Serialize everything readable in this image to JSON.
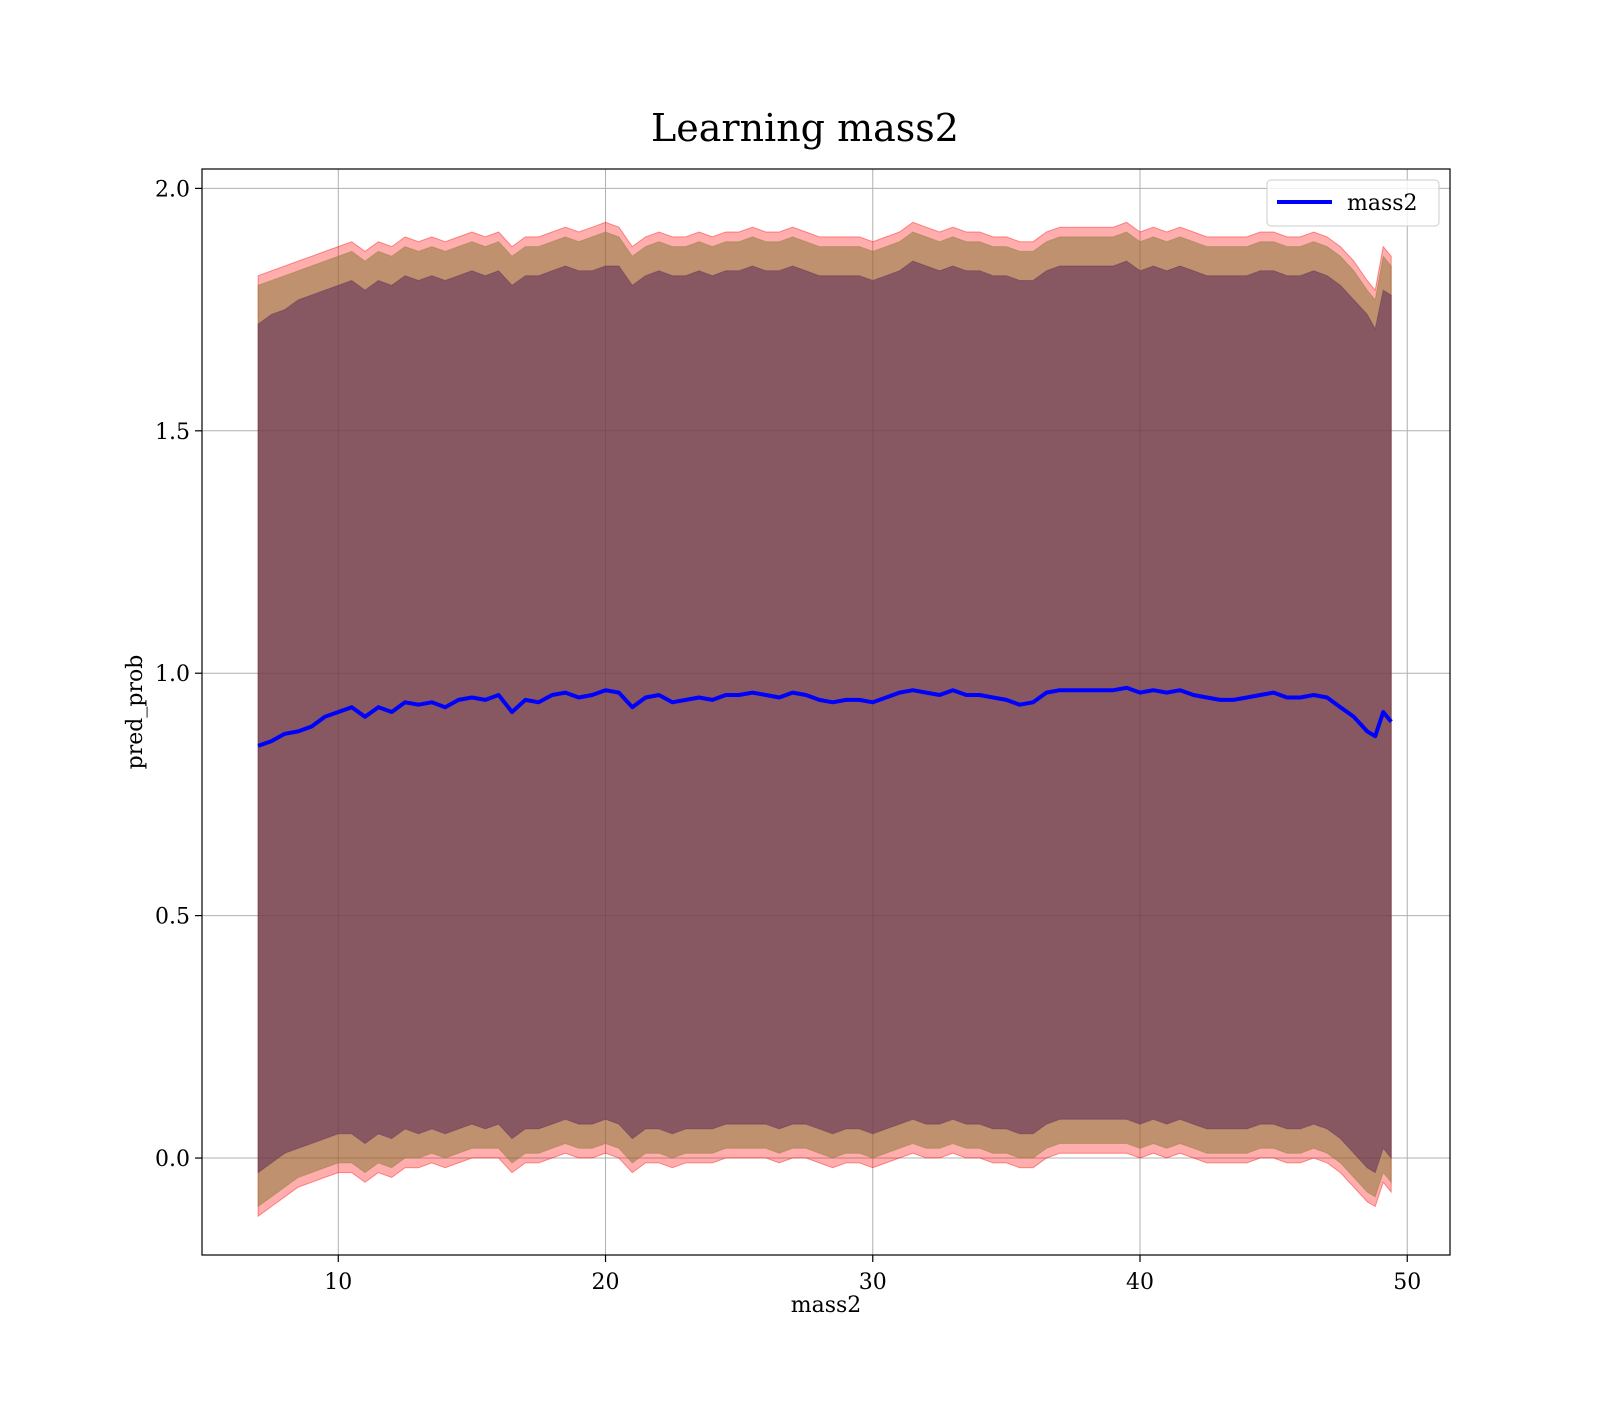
{
  "chart_data": {
    "type": "line",
    "title": "Learning mass2",
    "xlabel": "mass2",
    "ylabel": "pred_prob",
    "xlim": [
      4.9,
      51.6
    ],
    "ylim": [
      -0.2,
      2.04
    ],
    "grid": true,
    "legend_position": "top-right",
    "x_ticks": [
      10,
      20,
      30,
      40,
      50
    ],
    "x_tick_labels": [
      "10",
      "20",
      "30",
      "40",
      "50"
    ],
    "y_ticks": [
      0.0,
      0.5,
      1.0,
      1.5,
      2.0
    ],
    "y_tick_labels": [
      "0.0",
      "0.5",
      "1.0",
      "1.5",
      "2.0"
    ],
    "colors": {
      "line": "#0000ff",
      "outer_band": "#ff0000",
      "middle_band": "#8c7a3a",
      "inner_band": "#5a2a5a"
    },
    "series": [
      {
        "name": "mass2",
        "x": [
          7.0,
          7.5,
          8.0,
          8.5,
          9.0,
          9.5,
          10.0,
          10.5,
          11.0,
          11.5,
          12.0,
          12.5,
          13.0,
          13.5,
          14.0,
          14.5,
          15.0,
          15.5,
          16.0,
          16.5,
          17.0,
          17.5,
          18.0,
          18.5,
          19.0,
          19.5,
          20.0,
          20.5,
          21.0,
          21.5,
          22.0,
          22.5,
          23.0,
          23.5,
          24.0,
          24.5,
          25.0,
          25.5,
          26.0,
          26.5,
          27.0,
          27.5,
          28.0,
          28.5,
          29.0,
          29.5,
          30.0,
          30.5,
          31.0,
          31.5,
          32.0,
          32.5,
          33.0,
          33.5,
          34.0,
          34.5,
          35.0,
          35.5,
          36.0,
          36.5,
          37.0,
          37.5,
          38.0,
          38.5,
          39.0,
          39.5,
          40.0,
          40.5,
          41.0,
          41.5,
          42.0,
          42.5,
          43.0,
          43.5,
          44.0,
          44.5,
          45.0,
          45.5,
          46.0,
          46.5,
          47.0,
          47.5,
          48.0,
          48.5,
          48.8,
          49.1,
          49.4
        ],
        "y": [
          0.85,
          0.86,
          0.875,
          0.88,
          0.89,
          0.91,
          0.92,
          0.93,
          0.91,
          0.93,
          0.92,
          0.94,
          0.935,
          0.94,
          0.93,
          0.945,
          0.95,
          0.945,
          0.955,
          0.92,
          0.945,
          0.94,
          0.955,
          0.96,
          0.95,
          0.955,
          0.965,
          0.96,
          0.93,
          0.95,
          0.955,
          0.94,
          0.945,
          0.95,
          0.945,
          0.955,
          0.955,
          0.96,
          0.955,
          0.95,
          0.96,
          0.955,
          0.945,
          0.94,
          0.945,
          0.945,
          0.94,
          0.95,
          0.96,
          0.965,
          0.96,
          0.955,
          0.965,
          0.955,
          0.955,
          0.95,
          0.945,
          0.935,
          0.94,
          0.96,
          0.965,
          0.965,
          0.965,
          0.965,
          0.965,
          0.97,
          0.96,
          0.965,
          0.96,
          0.965,
          0.955,
          0.95,
          0.945,
          0.945,
          0.95,
          0.955,
          0.96,
          0.95,
          0.95,
          0.955,
          0.95,
          0.93,
          0.91,
          0.88,
          0.87,
          0.92,
          0.9
        ]
      }
    ],
    "bands": [
      {
        "kind": "outer",
        "lower": [
          -0.12,
          -0.1,
          -0.08,
          -0.06,
          -0.05,
          -0.04,
          -0.03,
          -0.03,
          -0.05,
          -0.03,
          -0.04,
          -0.02,
          -0.02,
          -0.01,
          -0.02,
          -0.01,
          0.0,
          0.0,
          0.0,
          -0.03,
          -0.01,
          -0.01,
          0.0,
          0.01,
          0.0,
          0.0,
          0.01,
          0.0,
          -0.03,
          -0.01,
          -0.01,
          -0.02,
          -0.01,
          -0.01,
          -0.01,
          0.0,
          0.0,
          0.0,
          0.0,
          -0.01,
          0.0,
          0.0,
          -0.01,
          -0.02,
          -0.01,
          -0.01,
          -0.02,
          -0.01,
          0.0,
          0.01,
          0.0,
          0.0,
          0.01,
          0.0,
          0.0,
          -0.01,
          -0.01,
          -0.02,
          -0.02,
          0.0,
          0.01,
          0.01,
          0.01,
          0.01,
          0.01,
          0.01,
          0.0,
          0.01,
          0.0,
          0.01,
          0.0,
          -0.01,
          -0.01,
          -0.01,
          -0.01,
          0.0,
          0.0,
          -0.01,
          -0.01,
          0.0,
          -0.01,
          -0.03,
          -0.06,
          -0.09,
          -0.1,
          -0.05,
          -0.07
        ],
        "upper": [
          1.82,
          1.83,
          1.84,
          1.85,
          1.86,
          1.87,
          1.88,
          1.89,
          1.87,
          1.89,
          1.88,
          1.9,
          1.89,
          1.9,
          1.89,
          1.9,
          1.91,
          1.9,
          1.91,
          1.88,
          1.9,
          1.9,
          1.91,
          1.92,
          1.91,
          1.92,
          1.93,
          1.92,
          1.88,
          1.9,
          1.91,
          1.9,
          1.9,
          1.91,
          1.9,
          1.91,
          1.91,
          1.92,
          1.91,
          1.91,
          1.92,
          1.91,
          1.9,
          1.9,
          1.9,
          1.9,
          1.89,
          1.9,
          1.91,
          1.93,
          1.92,
          1.91,
          1.92,
          1.91,
          1.91,
          1.9,
          1.9,
          1.89,
          1.89,
          1.91,
          1.92,
          1.92,
          1.92,
          1.92,
          1.92,
          1.93,
          1.91,
          1.92,
          1.91,
          1.92,
          1.91,
          1.9,
          1.9,
          1.9,
          1.9,
          1.91,
          1.91,
          1.9,
          1.9,
          1.91,
          1.9,
          1.88,
          1.85,
          1.81,
          1.79,
          1.88,
          1.86
        ]
      },
      {
        "kind": "middle",
        "lower": [
          -0.1,
          -0.08,
          -0.06,
          -0.04,
          -0.03,
          -0.02,
          -0.01,
          -0.01,
          -0.03,
          -0.01,
          -0.02,
          0.0,
          0.0,
          0.01,
          0.0,
          0.01,
          0.02,
          0.02,
          0.02,
          -0.01,
          0.01,
          0.01,
          0.02,
          0.03,
          0.02,
          0.02,
          0.03,
          0.02,
          -0.01,
          0.01,
          0.01,
          0.0,
          0.01,
          0.01,
          0.01,
          0.02,
          0.02,
          0.02,
          0.02,
          0.01,
          0.02,
          0.02,
          0.01,
          0.0,
          0.01,
          0.01,
          0.0,
          0.01,
          0.02,
          0.03,
          0.02,
          0.02,
          0.03,
          0.02,
          0.02,
          0.01,
          0.01,
          0.0,
          0.0,
          0.02,
          0.03,
          0.03,
          0.03,
          0.03,
          0.03,
          0.03,
          0.02,
          0.03,
          0.02,
          0.03,
          0.02,
          0.01,
          0.01,
          0.01,
          0.01,
          0.02,
          0.02,
          0.01,
          0.01,
          0.02,
          0.01,
          -0.01,
          -0.04,
          -0.07,
          -0.08,
          -0.03,
          -0.05
        ],
        "upper": [
          1.8,
          1.81,
          1.82,
          1.83,
          1.84,
          1.85,
          1.86,
          1.87,
          1.85,
          1.87,
          1.86,
          1.88,
          1.87,
          1.88,
          1.87,
          1.88,
          1.89,
          1.88,
          1.89,
          1.86,
          1.88,
          1.88,
          1.89,
          1.9,
          1.89,
          1.9,
          1.91,
          1.9,
          1.86,
          1.88,
          1.89,
          1.88,
          1.88,
          1.89,
          1.88,
          1.89,
          1.89,
          1.9,
          1.89,
          1.89,
          1.9,
          1.89,
          1.88,
          1.88,
          1.88,
          1.88,
          1.87,
          1.88,
          1.89,
          1.91,
          1.9,
          1.89,
          1.9,
          1.89,
          1.89,
          1.88,
          1.88,
          1.87,
          1.87,
          1.89,
          1.9,
          1.9,
          1.9,
          1.9,
          1.9,
          1.91,
          1.89,
          1.9,
          1.89,
          1.9,
          1.89,
          1.88,
          1.88,
          1.88,
          1.88,
          1.89,
          1.89,
          1.88,
          1.88,
          1.89,
          1.88,
          1.86,
          1.83,
          1.79,
          1.77,
          1.86,
          1.84
        ]
      },
      {
        "kind": "inner",
        "lower": [
          -0.03,
          -0.01,
          0.01,
          0.02,
          0.03,
          0.04,
          0.05,
          0.05,
          0.03,
          0.05,
          0.04,
          0.06,
          0.05,
          0.06,
          0.05,
          0.06,
          0.07,
          0.06,
          0.07,
          0.04,
          0.06,
          0.06,
          0.07,
          0.08,
          0.07,
          0.07,
          0.08,
          0.07,
          0.04,
          0.06,
          0.06,
          0.05,
          0.06,
          0.06,
          0.06,
          0.07,
          0.07,
          0.07,
          0.07,
          0.06,
          0.07,
          0.07,
          0.06,
          0.05,
          0.06,
          0.06,
          0.05,
          0.06,
          0.07,
          0.08,
          0.07,
          0.07,
          0.08,
          0.07,
          0.07,
          0.06,
          0.06,
          0.05,
          0.05,
          0.07,
          0.08,
          0.08,
          0.08,
          0.08,
          0.08,
          0.08,
          0.07,
          0.08,
          0.07,
          0.08,
          0.07,
          0.06,
          0.06,
          0.06,
          0.06,
          0.07,
          0.07,
          0.06,
          0.06,
          0.07,
          0.06,
          0.04,
          0.01,
          -0.02,
          -0.03,
          0.02,
          0.0
        ],
        "upper": [
          1.72,
          1.74,
          1.75,
          1.77,
          1.78,
          1.79,
          1.8,
          1.81,
          1.79,
          1.81,
          1.8,
          1.82,
          1.81,
          1.82,
          1.81,
          1.82,
          1.83,
          1.82,
          1.83,
          1.8,
          1.82,
          1.82,
          1.83,
          1.84,
          1.83,
          1.83,
          1.84,
          1.84,
          1.8,
          1.82,
          1.83,
          1.82,
          1.82,
          1.83,
          1.82,
          1.83,
          1.83,
          1.84,
          1.83,
          1.83,
          1.84,
          1.83,
          1.82,
          1.82,
          1.82,
          1.82,
          1.81,
          1.82,
          1.83,
          1.85,
          1.84,
          1.83,
          1.84,
          1.83,
          1.83,
          1.82,
          1.82,
          1.81,
          1.81,
          1.83,
          1.84,
          1.84,
          1.84,
          1.84,
          1.84,
          1.85,
          1.83,
          1.84,
          1.83,
          1.84,
          1.83,
          1.82,
          1.82,
          1.82,
          1.82,
          1.83,
          1.83,
          1.82,
          1.82,
          1.83,
          1.82,
          1.8,
          1.77,
          1.74,
          1.71,
          1.79,
          1.78
        ]
      }
    ]
  }
}
